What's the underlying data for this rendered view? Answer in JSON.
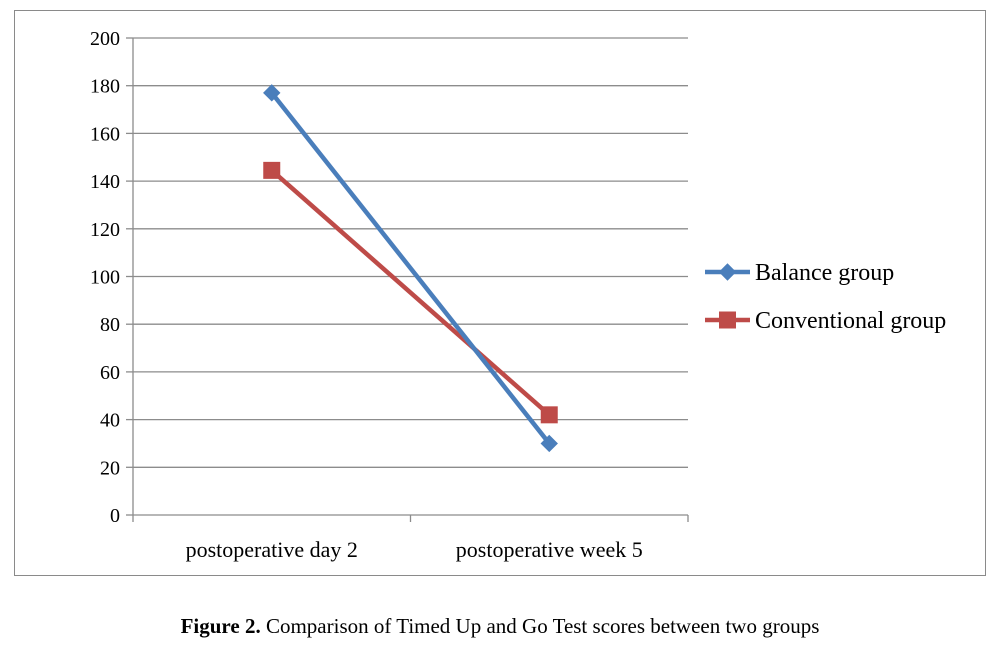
{
  "chart_data": {
    "type": "line",
    "categories": [
      "postoperative day 2",
      "postoperative week 5"
    ],
    "series": [
      {
        "name": "Balance group",
        "values": [
          177,
          30
        ],
        "color": "#4a7ebb",
        "marker": "diamond"
      },
      {
        "name": "Conventional group",
        "values": [
          144.5,
          42
        ],
        "color": "#be4b48",
        "marker": "square"
      }
    ],
    "ylim": [
      0,
      200
    ],
    "yticks": [
      0,
      20,
      40,
      60,
      80,
      100,
      120,
      140,
      160,
      180,
      200
    ],
    "grid": true,
    "legend_position": "right"
  },
  "caption": {
    "label": "Figure 2.",
    "text": " Comparison of Timed Up and Go Test scores between two groups"
  }
}
